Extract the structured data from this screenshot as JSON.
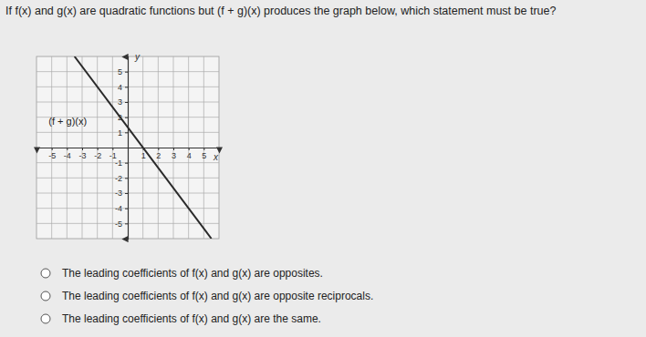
{
  "question": "If f(x) and g(x) are quadratic functions but (f + g)(x) produces the graph below, which statement must be true?",
  "chart_data": {
    "type": "line",
    "xlabel": "x",
    "ylabel": "y",
    "x": [
      -3.5,
      5.5
    ],
    "series": [
      {
        "name": "(f + g)(x)",
        "color": "#2a2a2a",
        "values": [
          6,
          -6
        ]
      }
    ],
    "xlim": [
      -6,
      6
    ],
    "ylim": [
      -6,
      6
    ],
    "xticks": [
      -5,
      -4,
      -3,
      -2,
      -1,
      1,
      2,
      3,
      4,
      5
    ],
    "yticks": [
      -5,
      -4,
      -3,
      -2,
      -1,
      1,
      2,
      3,
      4,
      5
    ],
    "grid": true
  },
  "choices": [
    "The leading coefficients of f(x) and g(x) are opposites.",
    "The leading coefficients of f(x) and g(x) are opposite reciprocals.",
    "The leading coefficients of f(x) and g(x) are the same."
  ]
}
